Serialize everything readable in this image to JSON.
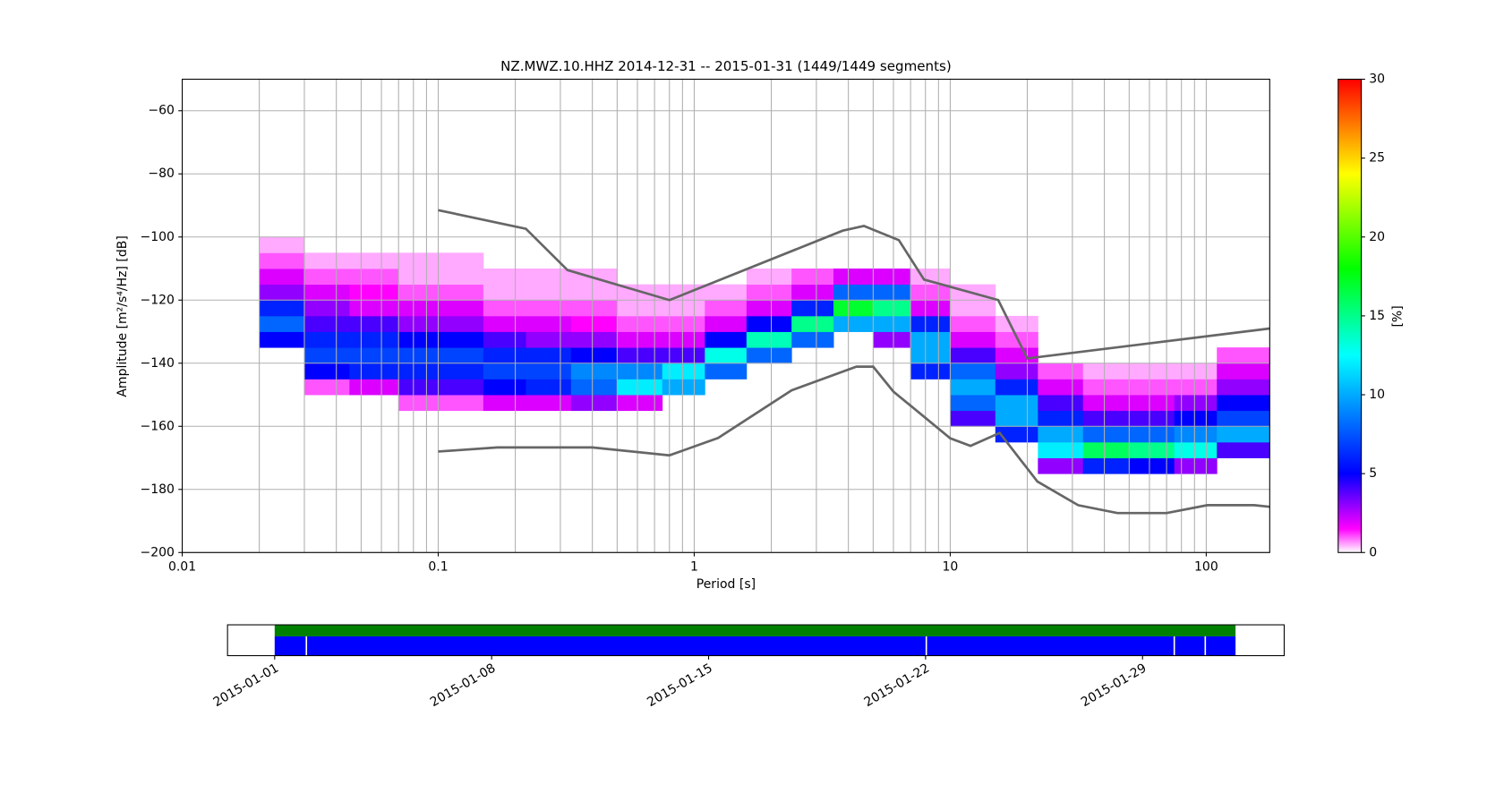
{
  "chart_data": [
    {
      "type": "heatmap",
      "title": "NZ.MWZ.10.HHZ   2014-12-31 -- 2015-01-31  (1449/1449 segments)",
      "x_label": "Period [s]",
      "y_label": "Amplitude [m²/s⁴/Hz] [dB]",
      "x_log": true,
      "grid": true,
      "xlim": [
        0.01,
        177
      ],
      "xticks": [
        0.01,
        0.1,
        1,
        10,
        100
      ],
      "ylim": [
        -200,
        -50
      ],
      "yticks": [
        {
          "value": -60,
          "label": "−60"
        },
        {
          "value": -80,
          "label": "−80"
        },
        {
          "value": -100,
          "label": "−100"
        },
        {
          "value": -120,
          "label": "−120"
        },
        {
          "value": -140,
          "label": "−140"
        },
        {
          "value": -160,
          "label": "−160"
        },
        {
          "value": -180,
          "label": "−180"
        },
        {
          "value": -200,
          "label": "−200"
        }
      ],
      "xbins": [
        0.02,
        0.03,
        0.045,
        0.07,
        0.1,
        0.15,
        0.22,
        0.33,
        0.5,
        0.75,
        1.1,
        1.6,
        2.4,
        3.5,
        5,
        7,
        10,
        15,
        22,
        33,
        50,
        75,
        110,
        177
      ],
      "y_step": 5,
      "columns": [
        {
          "y0": -135,
          "values": [
            5,
            8,
            6,
            3,
            2,
            1,
            0.5
          ]
        },
        {
          "y0": -150,
          "values": [
            1,
            5,
            7,
            6,
            4,
            3,
            2,
            1,
            0.5
          ]
        },
        {
          "y0": -150,
          "values": [
            2,
            6,
            7,
            6,
            4,
            2,
            1.5,
            1,
            0.5
          ]
        },
        {
          "y0": -155,
          "values": [
            1,
            4,
            6,
            7,
            5,
            3,
            2,
            1,
            0.5,
            0.5
          ]
        },
        {
          "y0": -155,
          "values": [
            1,
            4,
            6,
            7,
            5,
            3,
            2,
            1,
            0.5,
            0.5
          ]
        },
        {
          "y0": -155,
          "values": [
            2,
            5,
            7,
            6,
            4,
            2,
            1,
            0.5,
            0.5
          ]
        },
        {
          "y0": -155,
          "values": [
            2,
            6,
            7,
            6,
            3,
            2,
            1,
            0.5,
            0.5
          ]
        },
        {
          "y0": -155,
          "values": [
            3,
            8,
            9,
            5,
            3,
            1.5,
            1,
            0.5,
            0.5
          ]
        },
        {
          "y0": -155,
          "values": [
            2,
            12,
            9,
            4,
            2,
            1,
            0.5,
            0.5
          ]
        },
        {
          "y0": -150,
          "values": [
            10,
            12,
            4,
            2,
            1,
            0.5,
            0.5
          ]
        },
        {
          "y0": -145,
          "values": [
            8,
            13,
            5,
            2,
            1,
            0.5
          ]
        },
        {
          "y0": -140,
          "values": [
            8,
            14,
            5,
            2,
            1,
            0.5
          ]
        },
        {
          "y0": -135,
          "values": [
            8,
            15,
            6,
            2,
            1
          ]
        },
        {
          "y0": -130,
          "values": [
            10,
            17,
            8,
            2
          ]
        },
        {
          "y0": -135,
          "values": [
            3,
            10,
            15,
            8,
            2
          ]
        },
        {
          "y0": -145,
          "values": [
            6,
            10,
            10,
            6,
            2,
            1,
            0.5
          ]
        },
        {
          "y0": -160,
          "values": [
            4,
            8,
            10,
            8,
            4,
            2,
            1,
            0.5,
            0.5
          ]
        },
        {
          "y0": -165,
          "values": [
            6,
            10,
            10,
            6,
            3,
            2,
            1,
            0.5
          ]
        },
        {
          "y0": -175,
          "values": [
            3,
            12,
            10,
            6,
            4,
            2,
            1
          ]
        },
        {
          "y0": -175,
          "values": [
            6,
            16,
            8,
            4,
            2,
            1,
            0.5
          ]
        },
        {
          "y0": -175,
          "values": [
            5,
            15,
            8,
            4,
            2,
            1,
            0.5
          ]
        },
        {
          "y0": -175,
          "values": [
            3,
            13,
            9,
            5,
            3,
            1,
            0.5
          ]
        },
        {
          "y0": -170,
          "values": [
            4,
            10,
            7,
            5,
            3,
            2,
            1
          ]
        }
      ],
      "colormap": [
        {
          "value": 0,
          "color": "#ffffff"
        },
        {
          "value": 1.5,
          "color": "#ff00ff"
        },
        {
          "value": 5,
          "color": "#0000ff"
        },
        {
          "value": 12.5,
          "color": "#00ffff"
        },
        {
          "value": 18,
          "color": "#00ff00"
        },
        {
          "value": 24,
          "color": "#ffff00"
        },
        {
          "value": 30,
          "color": "#ff0000"
        }
      ],
      "colorbar_label": "[%]",
      "clim": [
        0,
        30
      ],
      "cticks": [
        0,
        5,
        10,
        15,
        20,
        25,
        30
      ],
      "lines": [
        {
          "color": "#666666",
          "x": [
            0.1,
            0.22,
            0.32,
            0.8,
            3.8,
            4.6,
            6.3,
            7.9,
            15.4,
            20,
            177
          ],
          "values": [
            -91.5,
            -97.4,
            -110.5,
            -120,
            -98,
            -96.5,
            -101,
            -113.5,
            -120,
            -138.5,
            -129
          ]
        },
        {
          "color": "#666666",
          "x": [
            0.1,
            0.17,
            0.4,
            0.8,
            1.24,
            2.4,
            4.3,
            5,
            6,
            10,
            12,
            15.6,
            21.9,
            31.6,
            45,
            70,
            101,
            154,
            177
          ],
          "values": [
            -168,
            -166.7,
            -166.7,
            -169.2,
            -163.7,
            -148.6,
            -141.1,
            -141.1,
            -149,
            -163.8,
            -166.2,
            -162.1,
            -177.5,
            -185,
            -187.5,
            -187.5,
            -185,
            -185,
            -185.5
          ]
        }
      ]
    },
    {
      "type": "timeline",
      "xlim": [
        "2014-12-30T11:30",
        "2015-02-02T13:40"
      ],
      "xticks": [
        "2015-01-01",
        "2015-01-08",
        "2015-01-15",
        "2015-01-22",
        "2015-01-29"
      ],
      "series": [
        {
          "color": "#008000",
          "segments": [
            [
              "2015-01-01",
              "2015-02-01"
            ]
          ]
        },
        {
          "color": "#0000ff",
          "segments": [
            [
              "2015-01-01",
              "2015-01-02"
            ],
            [
              "2015-01-02",
              "2015-01-22"
            ],
            [
              "2015-01-22",
              "2015-01-30"
            ],
            [
              "2015-01-30",
              "2015-01-31"
            ],
            [
              "2015-01-31",
              "2015-02-01"
            ]
          ]
        }
      ]
    }
  ]
}
